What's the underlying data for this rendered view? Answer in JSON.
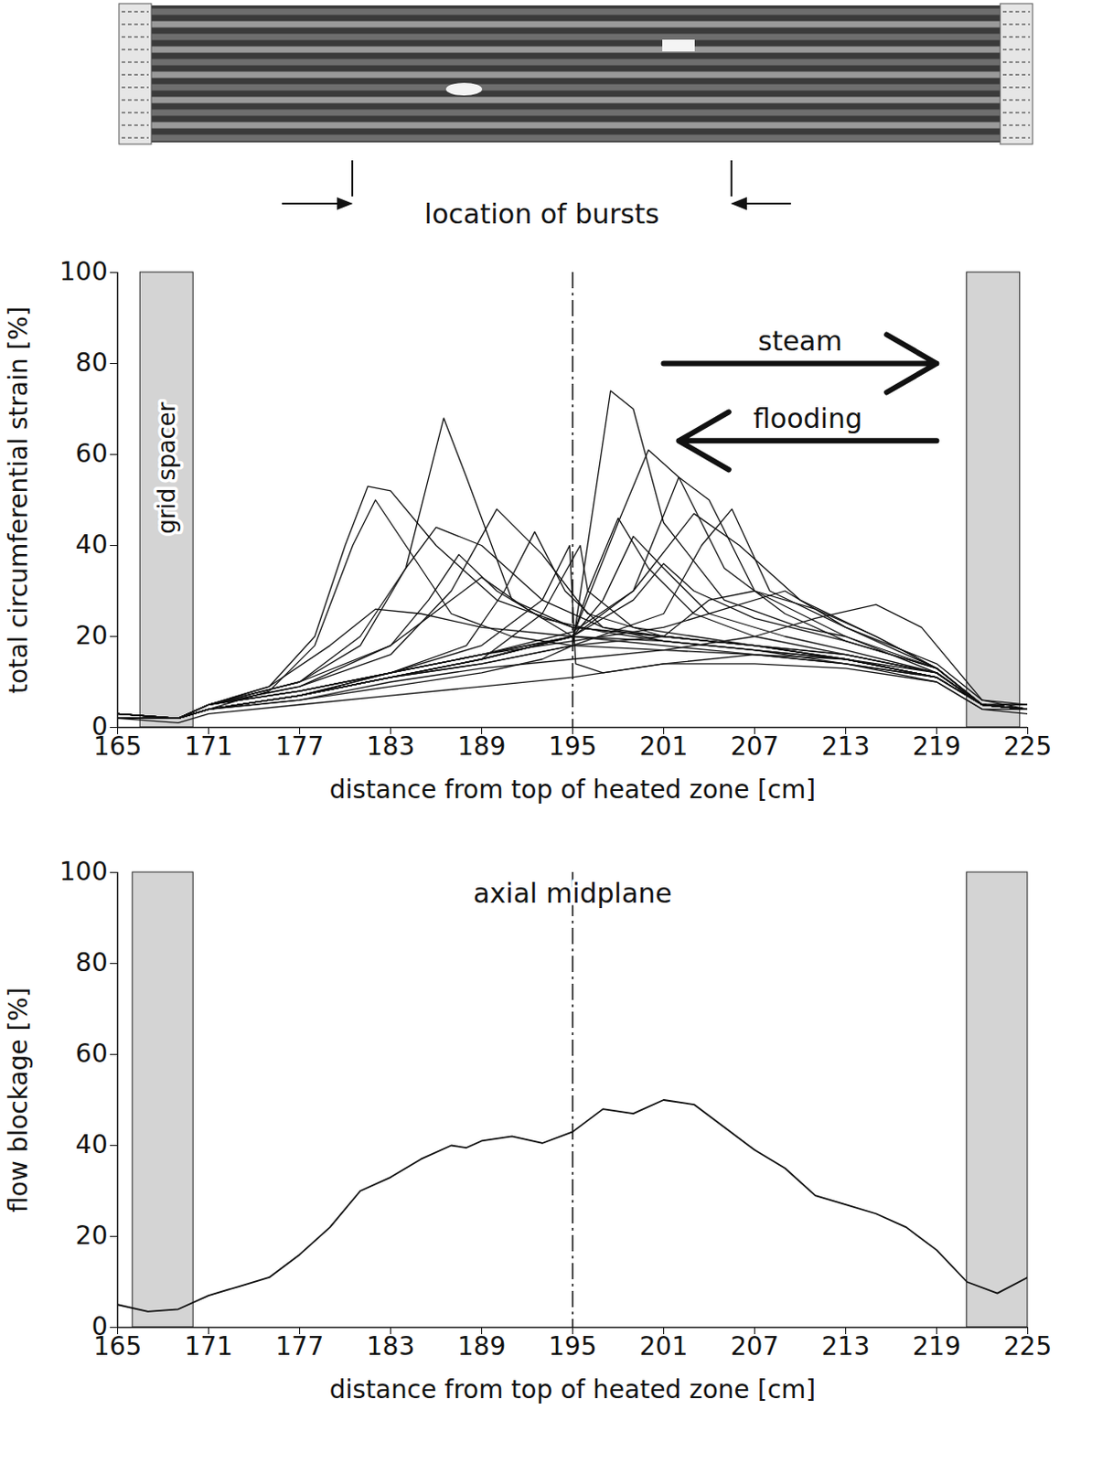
{
  "chart_data": [
    {
      "type": "line",
      "x_label": "distance from top of heated zone [cm]",
      "y_label": "total circumferential strain [%]",
      "xlim": [
        165,
        225
      ],
      "xticks": [
        165,
        171,
        177,
        183,
        189,
        195,
        201,
        207,
        213,
        219,
        225
      ],
      "ylim": [
        0,
        100
      ],
      "yticks": [
        0,
        20,
        40,
        60,
        80,
        100
      ],
      "burst_locations": {
        "label": "location of bursts",
        "x": [
          180.5,
          205.5
        ]
      },
      "spacers": [
        [
          166.5,
          170
        ],
        [
          221,
          224.5
        ]
      ],
      "grid_spacer_label": "grid spacer",
      "midplane": {
        "x": 195
      },
      "flow_arrows": [
        {
          "label": "steam",
          "from": 201,
          "to": 219,
          "y": 80
        },
        {
          "label": "flooding",
          "from": 219,
          "to": 202,
          "y": 63
        }
      ],
      "series": [
        {
          "x": [
            165,
            169,
            171,
            175,
            178,
            180,
            181.5,
            183,
            186,
            190,
            195,
            201,
            207,
            213,
            219,
            222,
            225
          ],
          "values": [
            3,
            2,
            5,
            9,
            20,
            40,
            53,
            52,
            40,
            28,
            22,
            20,
            18,
            16,
            12,
            5,
            4
          ]
        },
        {
          "x": [
            165,
            169,
            171,
            175,
            178,
            180.5,
            182,
            184,
            187,
            191,
            195,
            201,
            207,
            213,
            219,
            222,
            225
          ],
          "values": [
            2,
            2,
            4,
            8,
            18,
            40,
            50,
            40,
            25,
            20,
            18,
            17,
            16,
            14,
            10,
            4,
            4
          ]
        },
        {
          "x": [
            165,
            169,
            171,
            177,
            181,
            184,
            186.5,
            188,
            191,
            195,
            201,
            207,
            213,
            219,
            222,
            225
          ],
          "values": [
            3,
            2,
            5,
            10,
            18,
            35,
            68,
            55,
            28,
            22,
            20,
            18,
            15,
            12,
            5,
            4
          ]
        },
        {
          "x": [
            165,
            169,
            171,
            177,
            183,
            189,
            193,
            195,
            197.5,
            199,
            201,
            205,
            210,
            213,
            219,
            222,
            225
          ],
          "values": [
            2,
            2,
            4,
            6,
            9,
            12,
            15,
            18,
            74,
            70,
            45,
            28,
            22,
            20,
            12,
            5,
            5
          ]
        },
        {
          "x": [
            165,
            169,
            171,
            177,
            183,
            189,
            195,
            198,
            200,
            202,
            205,
            209,
            213,
            219,
            222,
            225
          ],
          "values": [
            2,
            2,
            4,
            7,
            11,
            15,
            20,
            45,
            61,
            55,
            35,
            25,
            19,
            13,
            5,
            4
          ]
        },
        {
          "x": [
            165,
            169,
            171,
            177,
            183,
            189,
            195,
            199,
            202,
            204,
            207,
            213,
            219,
            222,
            225
          ],
          "values": [
            3,
            2,
            5,
            8,
            12,
            16,
            20,
            30,
            55,
            50,
            30,
            20,
            13,
            5,
            4
          ]
        },
        {
          "x": [
            165,
            169,
            171,
            177,
            183,
            189,
            195,
            201,
            203.5,
            205.5,
            208,
            213,
            219,
            222,
            225
          ],
          "values": [
            2,
            2,
            4,
            7,
            11,
            14,
            18,
            25,
            40,
            48,
            30,
            22,
            14,
            6,
            4
          ]
        },
        {
          "x": [
            165,
            169,
            171,
            177,
            183,
            189,
            195,
            199,
            203,
            206,
            210,
            215,
            219,
            222,
            225
          ],
          "values": [
            3,
            2,
            5,
            8,
            12,
            16,
            21,
            30,
            47,
            40,
            28,
            20,
            13,
            5,
            4
          ]
        },
        {
          "x": [
            165,
            169,
            171,
            177,
            183,
            187,
            190,
            193,
            196,
            201,
            207,
            213,
            219,
            222,
            225
          ],
          "values": [
            2,
            2,
            5,
            9,
            16,
            30,
            48,
            38,
            25,
            20,
            18,
            16,
            12,
            5,
            4
          ]
        },
        {
          "x": [
            165,
            169,
            171,
            177,
            181,
            184,
            186,
            189,
            193,
            197,
            201,
            207,
            213,
            219,
            222,
            225
          ],
          "values": [
            3,
            2,
            5,
            10,
            20,
            35,
            44,
            40,
            28,
            22,
            20,
            18,
            15,
            11,
            5,
            4
          ]
        },
        {
          "x": [
            165,
            169,
            171,
            177,
            183,
            188,
            190.5,
            192.5,
            194.5,
            197,
            201,
            207,
            213,
            219,
            222,
            225
          ],
          "values": [
            2,
            2,
            4,
            7,
            12,
            18,
            30,
            43,
            30,
            22,
            19,
            17,
            14,
            11,
            5,
            4
          ]
        },
        {
          "x": [
            165,
            169,
            171,
            177,
            183,
            189,
            193,
            195.5,
            196,
            199,
            203,
            207,
            213,
            219,
            222,
            225
          ],
          "values": [
            2,
            2,
            4,
            7,
            11,
            15,
            25,
            40,
            30,
            22,
            20,
            18,
            15,
            11,
            5,
            4
          ]
        },
        {
          "x": [
            165,
            169,
            171,
            177,
            183,
            189,
            195,
            197,
            199,
            201,
            204,
            209,
            213,
            219,
            222,
            225
          ],
          "values": [
            3,
            2,
            5,
            8,
            12,
            16,
            20,
            28,
            42,
            35,
            25,
            20,
            17,
            12,
            5,
            5
          ]
        },
        {
          "x": [
            165,
            169,
            171,
            177,
            183,
            189,
            195,
            199,
            201,
            203,
            207,
            213,
            219,
            222,
            225
          ],
          "values": [
            2,
            2,
            4,
            7,
            11,
            15,
            20,
            28,
            36,
            30,
            24,
            19,
            13,
            5,
            4
          ]
        },
        {
          "x": [
            165,
            169,
            171,
            175,
            179,
            182,
            185,
            189,
            195,
            201,
            207,
            213,
            219,
            222,
            225
          ],
          "values": [
            3,
            2,
            5,
            9,
            18,
            26,
            25,
            22,
            20,
            19,
            17,
            15,
            11,
            5,
            4
          ]
        },
        {
          "x": [
            165,
            169,
            171,
            177,
            183,
            189,
            195,
            201,
            207,
            211,
            215,
            218,
            222,
            225
          ],
          "values": [
            2,
            2,
            4,
            6,
            10,
            13,
            15,
            17,
            20,
            24,
            27,
            22,
            6,
            5
          ]
        },
        {
          "x": [
            165,
            169,
            171,
            177,
            183,
            189,
            195,
            201,
            205,
            209,
            213,
            219,
            222,
            225
          ],
          "values": [
            3,
            2,
            5,
            8,
            12,
            16,
            19,
            22,
            26,
            30,
            22,
            13,
            5,
            4
          ]
        },
        {
          "x": [
            165,
            169,
            171,
            177,
            183,
            189,
            195,
            201,
            207,
            213,
            219,
            222,
            225
          ],
          "values": [
            2,
            1,
            3,
            5,
            7,
            9,
            11,
            14,
            14,
            13,
            10,
            4,
            3
          ]
        },
        {
          "x": [
            165,
            169,
            171,
            177,
            183,
            187,
            189,
            192,
            195,
            201,
            207,
            213,
            219,
            222,
            225
          ],
          "values": [
            3,
            2,
            5,
            9,
            18,
            28,
            33,
            26,
            20,
            18,
            16,
            14,
            11,
            5,
            4
          ]
        },
        {
          "x": [
            165,
            169,
            171,
            177,
            183,
            189,
            195,
            196,
            198,
            200,
            203,
            207,
            213,
            219,
            222,
            225
          ],
          "values": [
            2,
            2,
            4,
            7,
            11,
            15,
            20,
            30,
            46,
            35,
            25,
            20,
            16,
            12,
            5,
            4
          ]
        },
        {
          "x": [
            165,
            169,
            171,
            177,
            183,
            185.5,
            187.5,
            190,
            193,
            197,
            201,
            207,
            213,
            219,
            222,
            225
          ],
          "values": [
            3,
            2,
            5,
            10,
            18,
            28,
            38,
            30,
            24,
            21,
            19,
            17,
            15,
            11,
            5,
            4
          ]
        },
        {
          "x": [
            165,
            169,
            171,
            177,
            183,
            189,
            195,
            201,
            204,
            207,
            211,
            215,
            219,
            222,
            225
          ],
          "values": [
            2,
            2,
            4,
            7,
            11,
            14,
            18,
            20,
            28,
            30,
            26,
            20,
            13,
            5,
            4
          ]
        },
        {
          "x": [
            165,
            169,
            171,
            177,
            183,
            189,
            193,
            194.8,
            195.2,
            197,
            201,
            207,
            213,
            219,
            222,
            225
          ],
          "values": [
            2,
            2,
            4,
            7,
            12,
            18,
            28,
            40,
            14,
            12,
            14,
            16,
            15,
            11,
            5,
            4
          ]
        }
      ]
    },
    {
      "type": "line",
      "x_label": "distance from top of heated zone [cm]",
      "y_label": "flow blockage [%]",
      "xlim": [
        165,
        225
      ],
      "xticks": [
        165,
        171,
        177,
        183,
        189,
        195,
        201,
        207,
        213,
        219,
        225
      ],
      "ylim": [
        0,
        100
      ],
      "yticks": [
        0,
        20,
        40,
        60,
        80,
        100
      ],
      "spacers": [
        [
          166,
          170
        ],
        [
          221,
          225
        ]
      ],
      "midplane": {
        "x": 195,
        "label": "axial midplane"
      },
      "series": [
        {
          "x": [
            165,
            167,
            169,
            171,
            173,
            175,
            177,
            179,
            181,
            183,
            185,
            187,
            188,
            189,
            191,
            193,
            195,
            197,
            199,
            201,
            203,
            205,
            207,
            209,
            211,
            213,
            215,
            217,
            219,
            221,
            223,
            225
          ],
          "values": [
            5,
            3.5,
            4,
            7,
            9,
            11,
            16,
            22,
            30,
            33,
            37,
            40,
            39.5,
            41,
            42,
            40.5,
            43,
            48,
            47,
            50,
            49,
            44,
            39,
            35,
            29,
            27,
            25,
            22,
            17,
            10,
            7.5,
            11
          ]
        }
      ]
    }
  ]
}
